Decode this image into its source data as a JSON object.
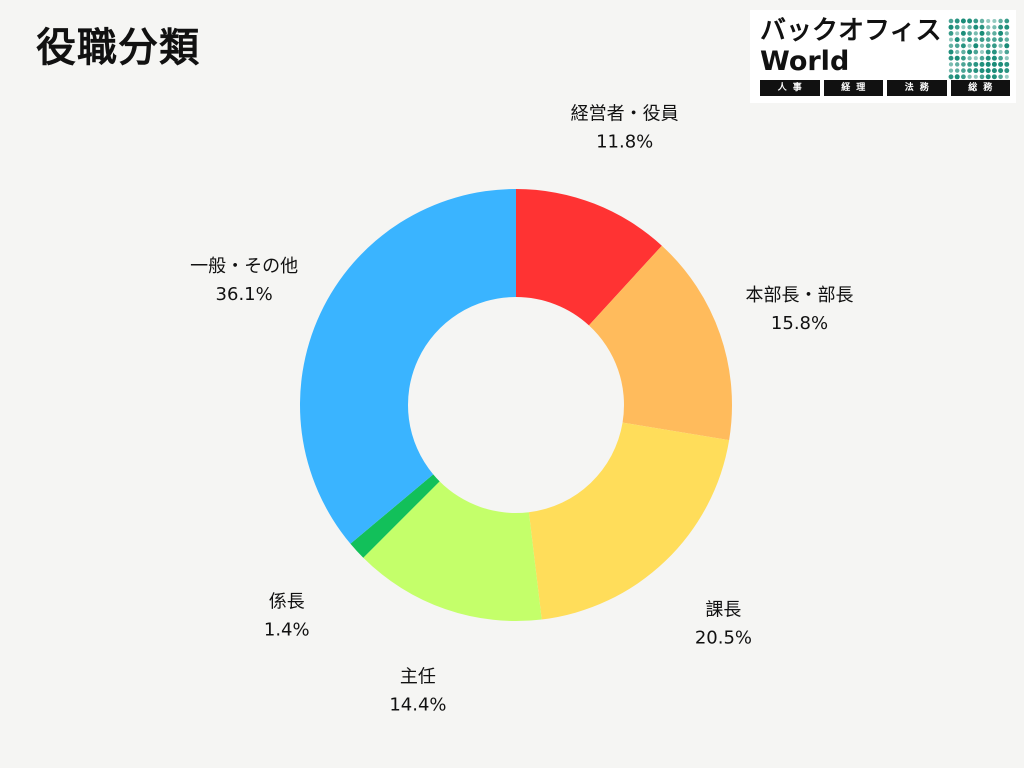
{
  "page": {
    "title": "役職分類"
  },
  "logo": {
    "name_line1": "バックオフィス",
    "name_line2": "World",
    "tags": [
      "人事",
      "経理",
      "法務",
      "総務"
    ],
    "accent_color": "#1a8c78"
  },
  "chart_data": {
    "type": "pie",
    "title": "役職分類",
    "donut": true,
    "categories": [
      "経営者・役員",
      "本部長・部長",
      "課長",
      "主任",
      "係長",
      "一般・その他"
    ],
    "values": [
      11.8,
      15.8,
      20.5,
      14.4,
      1.4,
      36.1
    ],
    "value_labels": [
      "11.8%",
      "15.8%",
      "20.5%",
      "14.4%",
      "1.4%",
      "36.1%"
    ],
    "colors": [
      "#ff3333",
      "#ffbb5c",
      "#ffdd5a",
      "#c4ff6a",
      "#12c05a",
      "#3ab4ff"
    ],
    "start": "12 o'clock",
    "direction": "clockwise",
    "legend": "none"
  }
}
